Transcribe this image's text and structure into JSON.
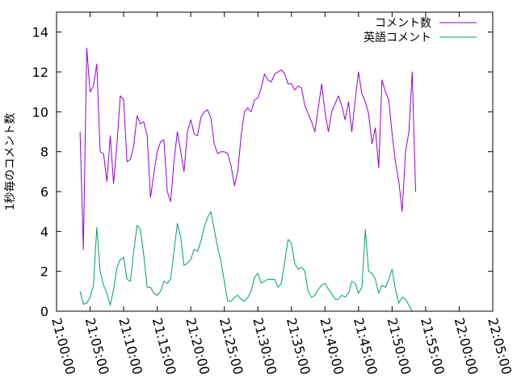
{
  "chart_data": {
    "type": "line",
    "ylabel": "1秒毎のコメント数",
    "xlabel": "",
    "xlim": [
      "21:00:00",
      "22:05:00"
    ],
    "ylim": [
      0,
      15
    ],
    "y_ticks": [
      0,
      2,
      4,
      6,
      8,
      10,
      12,
      14
    ],
    "x_ticks": [
      "21:00:00",
      "21:05:00",
      "21:10:00",
      "21:15:00",
      "21:20:00",
      "21:25:00",
      "21:30:00",
      "21:35:00",
      "21:40:00",
      "21:45:00",
      "21:50:00",
      "21:55:00",
      "22:00:00",
      "22:05:00"
    ],
    "legend_position": "top-right",
    "grid": false,
    "series": [
      {
        "name": "コメント数",
        "color": "#9400d3",
        "points": [
          [
            "21:03:30",
            9.0
          ],
          [
            "21:04:00",
            3.1
          ],
          [
            "21:04:30",
            13.2
          ],
          [
            "21:05:00",
            11.0
          ],
          [
            "21:05:30",
            11.3
          ],
          [
            "21:06:00",
            12.4
          ],
          [
            "21:06:30",
            8.0
          ],
          [
            "21:07:00",
            7.9
          ],
          [
            "21:07:30",
            6.5
          ],
          [
            "21:08:00",
            8.8
          ],
          [
            "21:08:30",
            6.4
          ],
          [
            "21:09:00",
            8.4
          ],
          [
            "21:09:30",
            10.8
          ],
          [
            "21:10:00",
            10.6
          ],
          [
            "21:10:30",
            7.5
          ],
          [
            "21:11:00",
            7.6
          ],
          [
            "21:11:30",
            8.3
          ],
          [
            "21:12:00",
            9.8
          ],
          [
            "21:12:30",
            9.4
          ],
          [
            "21:13:00",
            9.5
          ],
          [
            "21:13:30",
            8.8
          ],
          [
            "21:14:00",
            5.7
          ],
          [
            "21:14:30",
            6.9
          ],
          [
            "21:15:00",
            8.0
          ],
          [
            "21:15:30",
            8.5
          ],
          [
            "21:16:00",
            8.6
          ],
          [
            "21:16:30",
            6.0
          ],
          [
            "21:17:00",
            5.5
          ],
          [
            "21:17:30",
            7.5
          ],
          [
            "21:18:00",
            9.0
          ],
          [
            "21:18:30",
            8.0
          ],
          [
            "21:19:00",
            7.0
          ],
          [
            "21:19:30",
            9.0
          ],
          [
            "21:20:00",
            9.6
          ],
          [
            "21:20:30",
            8.9
          ],
          [
            "21:21:00",
            8.8
          ],
          [
            "21:21:30",
            9.7
          ],
          [
            "21:22:00",
            10.0
          ],
          [
            "21:22:30",
            10.1
          ],
          [
            "21:23:00",
            9.7
          ],
          [
            "21:23:30",
            8.4
          ],
          [
            "21:24:00",
            7.9
          ],
          [
            "21:24:30",
            8.0
          ],
          [
            "21:25:00",
            8.0
          ],
          [
            "21:25:30",
            7.9
          ],
          [
            "21:26:00",
            7.3
          ],
          [
            "21:26:30",
            6.3
          ],
          [
            "21:27:00",
            7.0
          ],
          [
            "21:27:30",
            8.8
          ],
          [
            "21:28:00",
            10.0
          ],
          [
            "21:28:30",
            10.2
          ],
          [
            "21:29:00",
            10.0
          ],
          [
            "21:29:30",
            10.6
          ],
          [
            "21:30:00",
            10.7
          ],
          [
            "21:30:30",
            11.2
          ],
          [
            "21:31:00",
            11.9
          ],
          [
            "21:31:30",
            11.6
          ],
          [
            "21:32:00",
            11.5
          ],
          [
            "21:32:30",
            11.9
          ],
          [
            "21:33:00",
            12.0
          ],
          [
            "21:33:30",
            12.1
          ],
          [
            "21:34:00",
            11.9
          ],
          [
            "21:34:30",
            11.4
          ],
          [
            "21:35:00",
            11.4
          ],
          [
            "21:35:30",
            11.1
          ],
          [
            "21:36:00",
            11.3
          ],
          [
            "21:36:30",
            11.2
          ],
          [
            "21:37:00",
            10.3
          ],
          [
            "21:37:30",
            9.9
          ],
          [
            "21:38:00",
            9.5
          ],
          [
            "21:38:30",
            9.0
          ],
          [
            "21:39:00",
            10.2
          ],
          [
            "21:39:30",
            11.4
          ],
          [
            "21:40:00",
            10.0
          ],
          [
            "21:40:30",
            9.0
          ],
          [
            "21:41:00",
            10.0
          ],
          [
            "21:41:30",
            10.4
          ],
          [
            "21:42:00",
            10.8
          ],
          [
            "21:42:30",
            10.3
          ],
          [
            "21:43:00",
            9.6
          ],
          [
            "21:43:30",
            10.5
          ],
          [
            "21:44:00",
            9.0
          ],
          [
            "21:44:30",
            10.6
          ],
          [
            "21:45:00",
            12.0
          ],
          [
            "21:45:30",
            10.9
          ],
          [
            "21:46:00",
            10.5
          ],
          [
            "21:46:30",
            9.9
          ],
          [
            "21:47:00",
            8.4
          ],
          [
            "21:47:30",
            9.2
          ],
          [
            "21:48:00",
            7.2
          ],
          [
            "21:48:30",
            11.6
          ],
          [
            "21:49:00",
            11.0
          ],
          [
            "21:49:30",
            10.6
          ],
          [
            "21:50:00",
            8.9
          ],
          [
            "21:50:30",
            7.5
          ],
          [
            "21:51:00",
            6.5
          ],
          [
            "21:51:30",
            5.0
          ],
          [
            "21:52:00",
            8.0
          ],
          [
            "21:52:30",
            9.0
          ],
          [
            "21:53:00",
            12.0
          ],
          [
            "21:53:30",
            6.0
          ]
        ]
      },
      {
        "name": "英語コメント",
        "color": "#009e73",
        "points": [
          [
            "21:03:30",
            1.0
          ],
          [
            "21:04:00",
            0.35
          ],
          [
            "21:04:30",
            0.4
          ],
          [
            "21:05:00",
            0.7
          ],
          [
            "21:05:30",
            1.3
          ],
          [
            "21:06:00",
            4.2
          ],
          [
            "21:06:30",
            2.0
          ],
          [
            "21:07:00",
            1.3
          ],
          [
            "21:07:30",
            0.9
          ],
          [
            "21:08:00",
            0.3
          ],
          [
            "21:08:30",
            1.1
          ],
          [
            "21:09:00",
            2.2
          ],
          [
            "21:09:30",
            2.6
          ],
          [
            "21:10:00",
            2.7
          ],
          [
            "21:10:30",
            1.6
          ],
          [
            "21:11:00",
            1.5
          ],
          [
            "21:11:30",
            3.0
          ],
          [
            "21:12:00",
            4.3
          ],
          [
            "21:12:30",
            4.1
          ],
          [
            "21:13:00",
            2.8
          ],
          [
            "21:13:30",
            1.2
          ],
          [
            "21:14:00",
            1.2
          ],
          [
            "21:14:30",
            0.9
          ],
          [
            "21:15:00",
            0.8
          ],
          [
            "21:15:30",
            1.0
          ],
          [
            "21:16:00",
            1.5
          ],
          [
            "21:16:30",
            1.4
          ],
          [
            "21:17:00",
            1.6
          ],
          [
            "21:17:30",
            3.0
          ],
          [
            "21:18:00",
            4.4
          ],
          [
            "21:18:30",
            3.7
          ],
          [
            "21:19:00",
            2.3
          ],
          [
            "21:19:30",
            2.4
          ],
          [
            "21:20:00",
            2.6
          ],
          [
            "21:20:30",
            3.1
          ],
          [
            "21:21:00",
            3.0
          ],
          [
            "21:21:30",
            3.5
          ],
          [
            "21:22:00",
            4.2
          ],
          [
            "21:22:30",
            4.7
          ],
          [
            "21:23:00",
            5.0
          ],
          [
            "21:23:30",
            4.1
          ],
          [
            "21:24:00",
            3.2
          ],
          [
            "21:24:30",
            2.5
          ],
          [
            "21:25:00",
            1.5
          ],
          [
            "21:25:30",
            0.5
          ],
          [
            "21:26:00",
            0.5
          ],
          [
            "21:26:30",
            0.7
          ],
          [
            "21:27:00",
            0.8
          ],
          [
            "21:27:30",
            0.6
          ],
          [
            "21:28:00",
            0.5
          ],
          [
            "21:28:30",
            0.7
          ],
          [
            "21:29:00",
            1.0
          ],
          [
            "21:29:30",
            1.7
          ],
          [
            "21:30:00",
            1.9
          ],
          [
            "21:30:30",
            1.4
          ],
          [
            "21:31:00",
            1.5
          ],
          [
            "21:31:30",
            1.6
          ],
          [
            "21:32:00",
            1.6
          ],
          [
            "21:32:30",
            1.6
          ],
          [
            "21:33:00",
            1.2
          ],
          [
            "21:33:30",
            1.4
          ],
          [
            "21:34:00",
            2.5
          ],
          [
            "21:34:30",
            3.6
          ],
          [
            "21:35:00",
            3.4
          ],
          [
            "21:35:30",
            2.4
          ],
          [
            "21:36:00",
            2.1
          ],
          [
            "21:36:30",
            2.2
          ],
          [
            "21:37:00",
            2.0
          ],
          [
            "21:37:30",
            1.0
          ],
          [
            "21:38:00",
            0.7
          ],
          [
            "21:38:30",
            0.8
          ],
          [
            "21:39:00",
            1.1
          ],
          [
            "21:39:30",
            1.3
          ],
          [
            "21:40:00",
            1.4
          ],
          [
            "21:40:30",
            1.1
          ],
          [
            "21:41:00",
            0.9
          ],
          [
            "21:41:30",
            0.6
          ],
          [
            "21:42:00",
            0.6
          ],
          [
            "21:42:30",
            0.8
          ],
          [
            "21:43:00",
            0.7
          ],
          [
            "21:43:30",
            0.9
          ],
          [
            "21:44:00",
            1.5
          ],
          [
            "21:44:30",
            1.4
          ],
          [
            "21:45:00",
            0.9
          ],
          [
            "21:45:30",
            1.2
          ],
          [
            "21:46:00",
            4.1
          ],
          [
            "21:46:30",
            2.0
          ],
          [
            "21:47:00",
            1.9
          ],
          [
            "21:47:30",
            1.6
          ],
          [
            "21:48:00",
            0.9
          ],
          [
            "21:48:30",
            1.3
          ],
          [
            "21:49:00",
            1.2
          ],
          [
            "21:49:30",
            1.6
          ],
          [
            "21:50:00",
            2.1
          ],
          [
            "21:50:30",
            1.1
          ],
          [
            "21:51:00",
            0.4
          ],
          [
            "21:51:30",
            0.7
          ],
          [
            "21:52:00",
            0.6
          ],
          [
            "21:52:30",
            0.3
          ],
          [
            "21:53:00",
            0.0
          ]
        ]
      }
    ]
  }
}
